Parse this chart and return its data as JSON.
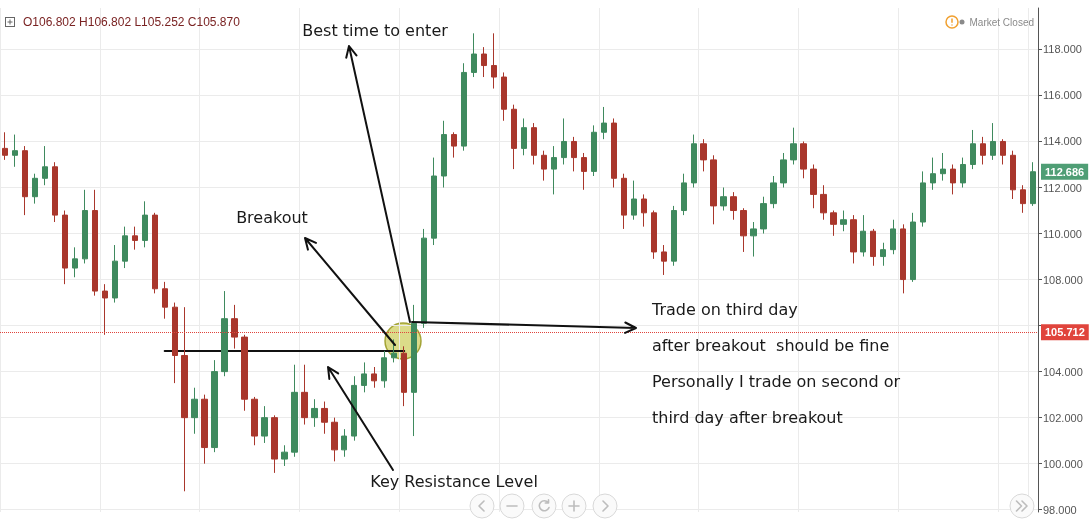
{
  "chart_data": {
    "type": "candlestick",
    "categories": [
      null,
      null,
      null,
      null,
      null,
      null,
      null,
      null,
      null,
      null,
      null,
      null,
      null,
      null,
      null,
      null,
      null,
      null,
      null,
      null,
      null,
      null,
      null,
      null,
      null,
      null,
      null,
      null,
      null,
      null,
      null,
      null,
      null,
      null,
      null,
      null,
      null,
      null,
      null,
      null,
      null,
      null,
      null,
      null,
      null,
      null,
      null,
      null,
      null,
      null,
      null,
      null,
      null,
      null,
      null,
      null,
      null,
      null,
      null,
      null,
      null,
      null,
      null,
      null,
      null,
      null,
      null,
      null,
      null,
      null,
      null,
      null,
      null,
      null,
      null,
      null,
      null,
      null,
      null,
      null,
      null,
      null,
      null,
      null,
      null,
      null,
      null,
      null,
      null,
      null,
      null,
      null,
      null,
      null,
      null,
      null,
      null,
      null,
      null,
      null,
      null,
      null,
      null,
      null
    ],
    "ohlc": [
      [
        113.7,
        114.4,
        113.2,
        113.4
      ],
      [
        113.4,
        114.3,
        112.9,
        113.6
      ],
      [
        113.6,
        113.8,
        110.8,
        111.6
      ],
      [
        111.6,
        112.6,
        111.3,
        112.4
      ],
      [
        112.4,
        113.8,
        112.1,
        112.9
      ],
      [
        112.9,
        113.1,
        110.5,
        110.8
      ],
      [
        110.8,
        111.0,
        107.8,
        108.5
      ],
      [
        108.5,
        109.4,
        108.1,
        108.9
      ],
      [
        108.9,
        111.9,
        108.7,
        111.0
      ],
      [
        111.0,
        111.9,
        107.3,
        107.5
      ],
      [
        107.5,
        107.8,
        105.6,
        107.2
      ],
      [
        107.2,
        109.5,
        107.0,
        108.8
      ],
      [
        108.8,
        110.3,
        108.5,
        109.9
      ],
      [
        109.9,
        110.3,
        109.3,
        109.7
      ],
      [
        109.7,
        111.4,
        109.4,
        110.8
      ],
      [
        110.8,
        110.9,
        107.4,
        107.6
      ],
      [
        107.6,
        107.9,
        106.3,
        106.8
      ],
      [
        106.8,
        107.0,
        103.5,
        104.7
      ],
      [
        104.7,
        106.8,
        98.8,
        102.0
      ],
      [
        102.0,
        103.3,
        101.3,
        102.8
      ],
      [
        102.8,
        103.0,
        100.0,
        100.7
      ],
      [
        100.7,
        104.5,
        100.5,
        104.0
      ],
      [
        104.0,
        107.5,
        103.8,
        106.3
      ],
      [
        106.3,
        106.9,
        105.0,
        105.5
      ],
      [
        105.5,
        105.6,
        102.3,
        102.8
      ],
      [
        102.8,
        102.9,
        100.8,
        101.2
      ],
      [
        101.2,
        102.5,
        100.9,
        102.0
      ],
      [
        102.0,
        102.1,
        99.6,
        100.2
      ],
      [
        100.2,
        100.8,
        99.9,
        100.5
      ],
      [
        100.5,
        104.3,
        100.3,
        103.1
      ],
      [
        103.1,
        104.3,
        101.7,
        102.0
      ],
      [
        102.0,
        102.8,
        101.6,
        102.4
      ],
      [
        102.4,
        102.7,
        101.3,
        101.8
      ],
      [
        101.8,
        102.0,
        100.1,
        100.6
      ],
      [
        100.6,
        101.5,
        100.3,
        101.2
      ],
      [
        101.2,
        103.8,
        101.0,
        103.4
      ],
      [
        103.4,
        104.4,
        103.1,
        103.9
      ],
      [
        103.9,
        104.2,
        103.3,
        103.6
      ],
      [
        103.6,
        104.9,
        103.3,
        104.6
      ],
      [
        104.6,
        105.4,
        104.4,
        104.8
      ],
      [
        104.8,
        105.1,
        102.5,
        103.1
      ],
      [
        103.1,
        106.9,
        101.2,
        106.1
      ],
      [
        106.1,
        110.2,
        105.9,
        109.8
      ],
      [
        109.8,
        113.3,
        109.5,
        112.5
      ],
      [
        112.5,
        114.9,
        112.0,
        114.3
      ],
      [
        114.3,
        114.4,
        113.3,
        113.8
      ],
      [
        113.8,
        117.4,
        113.6,
        117.0
      ],
      [
        117.0,
        118.7,
        116.8,
        117.8
      ],
      [
        117.8,
        118.1,
        116.8,
        117.3
      ],
      [
        117.3,
        118.7,
        116.3,
        116.8
      ],
      [
        116.8,
        117.0,
        114.9,
        115.4
      ],
      [
        115.4,
        115.6,
        112.8,
        113.7
      ],
      [
        113.7,
        115.0,
        113.4,
        114.6
      ],
      [
        114.6,
        114.8,
        113.0,
        113.4
      ],
      [
        113.4,
        113.6,
        112.3,
        112.8
      ],
      [
        112.8,
        113.8,
        111.7,
        113.3
      ],
      [
        113.3,
        115.0,
        113.0,
        114.0
      ],
      [
        114.0,
        114.2,
        112.7,
        113.3
      ],
      [
        113.3,
        113.5,
        111.9,
        112.7
      ],
      [
        112.7,
        114.7,
        112.5,
        114.4
      ],
      [
        114.4,
        115.5,
        114.1,
        114.8
      ],
      [
        114.8,
        115.0,
        112.0,
        112.4
      ],
      [
        112.4,
        112.6,
        110.2,
        110.8
      ],
      [
        110.8,
        112.3,
        110.6,
        111.5
      ],
      [
        111.5,
        111.7,
        110.3,
        110.9
      ],
      [
        110.9,
        111.0,
        108.9,
        109.2
      ],
      [
        109.2,
        109.5,
        108.2,
        108.8
      ],
      [
        108.8,
        111.2,
        108.6,
        111.0
      ],
      [
        111.0,
        112.6,
        110.8,
        112.2
      ],
      [
        112.2,
        114.3,
        112.0,
        113.9
      ],
      [
        113.9,
        114.1,
        112.7,
        113.2
      ],
      [
        113.2,
        113.4,
        110.4,
        111.2
      ],
      [
        111.2,
        112.0,
        111.0,
        111.6
      ],
      [
        111.6,
        111.8,
        110.6,
        111.0
      ],
      [
        111.0,
        111.1,
        109.2,
        109.9
      ],
      [
        109.9,
        110.5,
        109.0,
        110.2
      ],
      [
        110.2,
        111.6,
        110.0,
        111.3
      ],
      [
        111.3,
        112.5,
        111.1,
        112.2
      ],
      [
        112.2,
        113.5,
        112.0,
        113.2
      ],
      [
        113.2,
        114.6,
        113.0,
        113.9
      ],
      [
        113.9,
        114.0,
        112.4,
        112.8
      ],
      [
        112.8,
        113.0,
        111.1,
        111.7
      ],
      [
        111.7,
        112.1,
        110.6,
        110.9
      ],
      [
        110.9,
        111.0,
        109.9,
        110.4
      ],
      [
        110.4,
        111.0,
        110.1,
        110.6
      ],
      [
        110.6,
        110.8,
        108.7,
        109.2
      ],
      [
        109.2,
        110.8,
        109.0,
        110.1
      ],
      [
        110.1,
        110.2,
        108.6,
        109.0
      ],
      [
        109.0,
        109.6,
        108.6,
        109.3
      ],
      [
        109.3,
        110.6,
        109.1,
        110.2
      ],
      [
        110.2,
        110.4,
        107.4,
        108.0
      ],
      [
        108.0,
        110.9,
        107.9,
        110.5
      ],
      [
        110.5,
        112.7,
        110.3,
        112.2
      ],
      [
        112.2,
        113.3,
        111.9,
        112.6
      ],
      [
        112.6,
        113.5,
        112.3,
        112.8
      ],
      [
        112.8,
        113.0,
        111.7,
        112.2
      ],
      [
        112.2,
        113.3,
        112.0,
        113.0
      ],
      [
        113.0,
        114.5,
        112.8,
        113.9
      ],
      [
        113.9,
        114.2,
        113.0,
        113.4
      ],
      [
        113.4,
        114.8,
        113.2,
        114.0
      ],
      [
        114.0,
        114.1,
        113.0,
        113.4
      ],
      [
        113.4,
        113.6,
        111.5,
        111.9
      ],
      [
        111.9,
        112.1,
        110.9,
        111.3
      ],
      [
        111.3,
        113.1,
        111.2,
        112.686
      ]
    ],
    "colors": [
      "#a9372c",
      "#3f8a5e",
      "#a9372c",
      "#3f8a5e",
      "#3f8a5e",
      "#a9372c",
      "#a9372c",
      "#3f8a5e",
      "#3f8a5e",
      "#a9372c",
      "#a9372c",
      "#3f8a5e",
      "#3f8a5e",
      "#a9372c",
      "#3f8a5e",
      "#a9372c",
      "#a9372c",
      "#a9372c",
      "#a9372c",
      "#3f8a5e",
      "#a9372c",
      "#3f8a5e",
      "#3f8a5e",
      "#a9372c",
      "#a9372c",
      "#a9372c",
      "#3f8a5e",
      "#a9372c",
      "#3f8a5e",
      "#3f8a5e",
      "#a9372c",
      "#3f8a5e",
      "#a9372c",
      "#a9372c",
      "#3f8a5e",
      "#3f8a5e",
      "#3f8a5e",
      "#a9372c",
      "#3f8a5e",
      "#3f8a5e",
      "#a9372c",
      "#3f8a5e",
      "#3f8a5e",
      "#3f8a5e",
      "#3f8a5e",
      "#a9372c",
      "#3f8a5e",
      "#3f8a5e",
      "#a9372c",
      "#a9372c",
      "#a9372c",
      "#a9372c",
      "#3f8a5e",
      "#a9372c",
      "#a9372c",
      "#3f8a5e",
      "#3f8a5e",
      "#a9372c",
      "#a9372c",
      "#3f8a5e",
      "#3f8a5e",
      "#a9372c",
      "#a9372c",
      "#3f8a5e",
      "#a9372c",
      "#a9372c",
      "#a9372c",
      "#3f8a5e",
      "#3f8a5e",
      "#3f8a5e",
      "#a9372c",
      "#a9372c",
      "#3f8a5e",
      "#a9372c",
      "#a9372c",
      "#3f8a5e",
      "#3f8a5e",
      "#3f8a5e",
      "#3f8a5e",
      "#3f8a5e",
      "#a9372c",
      "#a9372c",
      "#a9372c",
      "#a9372c",
      "#3f8a5e",
      "#a9372c",
      "#3f8a5e",
      "#a9372c",
      "#3f8a5e",
      "#3f8a5e",
      "#a9372c",
      "#3f8a5e",
      "#3f8a5e",
      "#3f8a5e",
      "#3f8a5e",
      "#a9372c",
      "#3f8a5e",
      "#3f8a5e",
      "#a9372c",
      "#3f8a5e",
      "#a9372c",
      "#a9372c",
      "#a9372c",
      "#3f8a5e"
    ],
    "series": [
      {
        "type": "line",
        "color": "#111111",
        "values": [
          null,
          null,
          null,
          null,
          null,
          null,
          null,
          null,
          null,
          null,
          null,
          null,
          null,
          null,
          null,
          null,
          104.9,
          104.9,
          104.9,
          104.9,
          104.9,
          104.9,
          104.9,
          104.9,
          104.9,
          104.9,
          104.9,
          104.9,
          104.9,
          104.9,
          104.9,
          104.9,
          104.9,
          104.9,
          104.9,
          104.9,
          104.9,
          104.9,
          104.9,
          104.9,
          104.9,
          null,
          null,
          null,
          null,
          null,
          null,
          null,
          null,
          null,
          null,
          null,
          null,
          null,
          null,
          null,
          null,
          null,
          null,
          null,
          null,
          null,
          null,
          null,
          null,
          null,
          null,
          null,
          null,
          null,
          null,
          null,
          null,
          null,
          null,
          null,
          null,
          null,
          null,
          null,
          null,
          null,
          null,
          null,
          null,
          null,
          null,
          null,
          null,
          null,
          null,
          null,
          null,
          null,
          null,
          null,
          null,
          null,
          null,
          null,
          null,
          null,
          null,
          null
        ]
      }
    ],
    "ylim": [
      97.9,
      119.8
    ],
    "yticks": [
      {
        "value": 98,
        "label": "98.000"
      },
      {
        "value": 100,
        "label": "100.000"
      },
      {
        "value": 102,
        "label": "102.000"
      },
      {
        "value": 104,
        "label": "104.000"
      },
      {
        "value": 106,
        "label": null
      },
      {
        "value": 108,
        "label": "108.000"
      },
      {
        "value": 110,
        "label": "110.000"
      },
      {
        "value": 112,
        "label": "112.000"
      },
      {
        "value": 114,
        "label": "114.000"
      },
      {
        "value": 116,
        "label": "116.000"
      },
      {
        "value": 118,
        "label": "118.000"
      }
    ],
    "grid": true,
    "tick_labels": "y",
    "ref_lines": [
      {
        "axis": "y",
        "value": 105.712,
        "label": "105.712",
        "color": "#e0443c",
        "line_style": "dotted"
      }
    ],
    "annotations": [
      "O106.802 H106.802 L105.252 C105.870",
      "Market Closed",
      "Best time to enter",
      "Breakout",
      "Key Resistance Level",
      "Trade on third day\nafter breakout  should be fine\nPersonally I trade on second or\nthird day after breakout",
      "112.686"
    ]
  }
}
